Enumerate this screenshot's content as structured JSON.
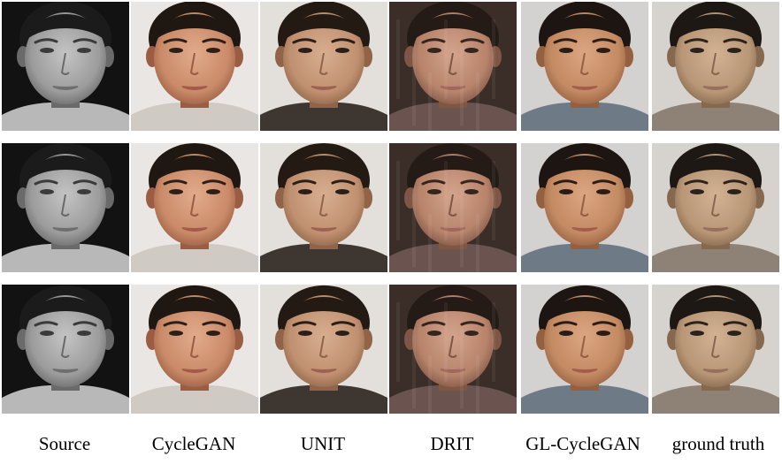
{
  "figure": {
    "columns": [
      {
        "label": "Source",
        "style": "gray"
      },
      {
        "label": "CycleGAN",
        "style": "warm"
      },
      {
        "label": "UNIT",
        "style": "smooth"
      },
      {
        "label": "DRIT",
        "style": "noisy"
      },
      {
        "label": "GL-CycleGAN",
        "style": "natural"
      },
      {
        "label": "ground truth",
        "style": "photo"
      }
    ],
    "rows": 3,
    "palette": {
      "gray": {
        "bg": "#121212",
        "skin": "#9c9c9c",
        "skinHi": "#c4c4c4",
        "skinLo": "#6a6a6a",
        "hair": "#1b1b1b",
        "shirt": "#b8b8b8",
        "eye": "#3a3a3a",
        "lip": "#6e6e6e"
      },
      "warm": {
        "bg": "#e9e6e3",
        "skin": "#c98a68",
        "skinHi": "#e2ab8c",
        "skinLo": "#9a5c42",
        "hair": "#1f1712",
        "shirt": "#cfcac4",
        "eye": "#2d1f18",
        "lip": "#a35a4a"
      },
      "smooth": {
        "bg": "#e3dfda",
        "skin": "#c09070",
        "skinHi": "#d8ae90",
        "skinLo": "#8f6448",
        "hair": "#231a14",
        "shirt": "#3e3630",
        "eye": "#2a1e18",
        "lip": "#9b6252"
      },
      "noisy": {
        "bg": "#3b2e28",
        "skin": "#b7836a",
        "skinHi": "#d3a48c",
        "skinLo": "#7f5544",
        "hair": "#241a16",
        "shirt": "#6b5450",
        "eye": "#35251f",
        "lip": "#a0685a"
      },
      "natural": {
        "bg": "#d4d2d0",
        "skin": "#c38a63",
        "skinHi": "#dba682",
        "skinLo": "#94603f",
        "hair": "#1c1511",
        "shirt": "#6e7a86",
        "eye": "#2b1d16",
        "lip": "#a45d48"
      },
      "photo": {
        "bg": "#d6d3cf",
        "skin": "#b89676",
        "skinHi": "#d2b294",
        "skinLo": "#86684e",
        "hair": "#1e1814",
        "shirt": "#8e8276",
        "eye": "#2b221c",
        "lip": "#95705e"
      }
    }
  }
}
